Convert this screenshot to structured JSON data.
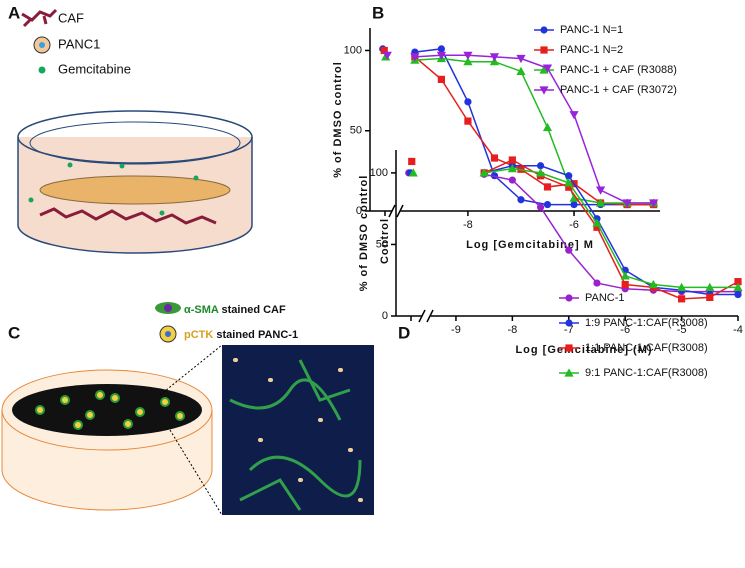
{
  "panel_labels": [
    "A",
    "B",
    "C",
    "D"
  ],
  "panel_a": {
    "legend": [
      "CAF",
      "PANC1",
      "Gemcitabine"
    ]
  },
  "panel_c": {
    "legend": [
      {
        "marker": "α-SMA",
        "text": "stained CAF"
      },
      {
        "marker": "pCTK",
        "text": "stained PANC-1"
      }
    ]
  },
  "chart_data": [
    {
      "type": "line",
      "xlabel": "Log [Gemcitabine] M",
      "ylabel": "% of DMSO control",
      "control_label": "Control",
      "x": [
        -9,
        -8.5,
        -8,
        -7.5,
        -7,
        -6.5,
        -6,
        -5.5,
        -5,
        -4.5
      ],
      "xlim": [
        -9.28,
        -4.38
      ],
      "xticks": [
        -8,
        -6
      ],
      "ylim": [
        0,
        114
      ],
      "yticks": [
        0,
        50,
        100
      ],
      "series": [
        {
          "name": "PANC-1 N=1",
          "color": "#2233dd",
          "marker": "circle",
          "control": 101,
          "values": [
            99,
            101,
            68,
            22,
            7,
            4,
            4,
            4,
            4,
            4
          ]
        },
        {
          "name": "PANC-1 N=2",
          "color": "#e61e1e",
          "marker": "square",
          "control": 100,
          "values": [
            96,
            82,
            56,
            33,
            26,
            15,
            17,
            5,
            4,
            4
          ]
        },
        {
          "name": "PANC-1 + CAF (R3088)",
          "color": "#22bb22",
          "marker": "triangle-up",
          "control": 96,
          "values": [
            94,
            95,
            93,
            93,
            87,
            52,
            8,
            5,
            5,
            5
          ]
        },
        {
          "name": "PANC-1 + CAF (R3072)",
          "color": "#9922dd",
          "marker": "triangle-down",
          "control": 97,
          "values": [
            96,
            97,
            97,
            96,
            95,
            89,
            60,
            13,
            5,
            5
          ]
        }
      ]
    },
    {
      "type": "line",
      "xlabel": "Log [Gemcitabine] (M)",
      "ylabel": "% of DMSO control",
      "x": [
        -8.5,
        -8,
        -7.5,
        -7,
        -6.5,
        -6,
        -5.5,
        -5,
        -4.5,
        -4
      ],
      "xlim": [
        -9.46,
        -4
      ],
      "xticks": [
        -9,
        -8,
        -7,
        -6,
        -5,
        -4
      ],
      "ylim": [
        0,
        116
      ],
      "yticks": [
        0,
        50,
        100
      ],
      "series": [
        {
          "name": "PANC-1",
          "color": "#9922cc",
          "marker": "circle",
          "control": 100,
          "values": [
            99,
            95,
            76,
            46,
            23,
            19,
            18,
            17,
            17,
            17
          ]
        },
        {
          "name": "1:9 PANC-1:CAF(R3008)",
          "color": "#2233dd",
          "marker": "circle",
          "control": 100,
          "values": [
            100,
            105,
            105,
            98,
            68,
            32,
            20,
            18,
            15,
            15
          ]
        },
        {
          "name": "1:1 PANC-1:CAF(R3008)",
          "color": "#e61e1e",
          "marker": "square",
          "control": 108,
          "values": [
            100,
            109,
            98,
            90,
            62,
            22,
            20,
            12,
            13,
            24
          ]
        },
        {
          "name": "9:1 PANC-1:CAF(R3008)",
          "color": "#22bb22",
          "marker": "triangle-up",
          "control": 100,
          "values": [
            100,
            103,
            100,
            93,
            65,
            28,
            22,
            20,
            20,
            20
          ]
        }
      ]
    }
  ]
}
